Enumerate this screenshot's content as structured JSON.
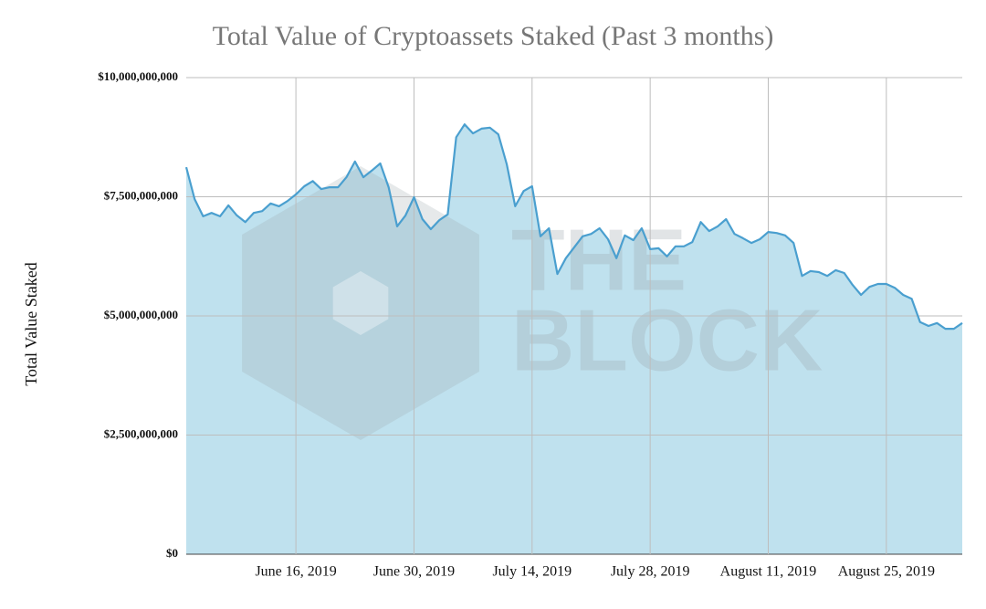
{
  "chart_data": {
    "type": "area",
    "title": "Total Value of Cryptoassets Staked (Past 3 months)",
    "y_label": "Total Value Staked",
    "watermark": [
      "THE",
      "BLOCK"
    ],
    "color": "#4a9fcf",
    "fill": "#bfe1ee",
    "grid": true,
    "x": [
      "2019-06-03",
      "2019-06-04",
      "2019-06-05",
      "2019-06-06",
      "2019-06-07",
      "2019-06-08",
      "2019-06-09",
      "2019-06-10",
      "2019-06-11",
      "2019-06-12",
      "2019-06-13",
      "2019-06-14",
      "2019-06-15",
      "2019-06-16",
      "2019-06-17",
      "2019-06-18",
      "2019-06-19",
      "2019-06-20",
      "2019-06-21",
      "2019-06-22",
      "2019-06-23",
      "2019-06-24",
      "2019-06-25",
      "2019-06-26",
      "2019-06-27",
      "2019-06-28",
      "2019-06-29",
      "2019-06-30",
      "2019-07-01",
      "2019-07-02",
      "2019-07-03",
      "2019-07-04",
      "2019-07-05",
      "2019-07-06",
      "2019-07-07",
      "2019-07-08",
      "2019-07-09",
      "2019-07-10",
      "2019-07-11",
      "2019-07-12",
      "2019-07-13",
      "2019-07-14",
      "2019-07-15",
      "2019-07-16",
      "2019-07-17",
      "2019-07-18",
      "2019-07-19",
      "2019-07-20",
      "2019-07-21",
      "2019-07-22",
      "2019-07-23",
      "2019-07-24",
      "2019-07-25",
      "2019-07-26",
      "2019-07-27",
      "2019-07-28",
      "2019-07-29",
      "2019-07-30",
      "2019-07-31",
      "2019-08-01",
      "2019-08-02",
      "2019-08-03",
      "2019-08-04",
      "2019-08-05",
      "2019-08-06",
      "2019-08-07",
      "2019-08-08",
      "2019-08-09",
      "2019-08-10",
      "2019-08-11",
      "2019-08-12",
      "2019-08-13",
      "2019-08-14",
      "2019-08-15",
      "2019-08-16",
      "2019-08-17",
      "2019-08-18",
      "2019-08-19",
      "2019-08-20",
      "2019-08-21",
      "2019-08-22",
      "2019-08-23",
      "2019-08-24",
      "2019-08-25",
      "2019-08-26",
      "2019-08-27",
      "2019-08-28",
      "2019-08-29",
      "2019-08-30",
      "2019-08-31",
      "2019-09-01",
      "2019-09-02",
      "2019-09-03"
    ],
    "values": [
      8120000000,
      7450000000,
      7090000000,
      7160000000,
      7090000000,
      7320000000,
      7110000000,
      6970000000,
      7160000000,
      7200000000,
      7360000000,
      7300000000,
      7410000000,
      7550000000,
      7720000000,
      7830000000,
      7660000000,
      7700000000,
      7700000000,
      7910000000,
      8240000000,
      7910000000,
      8050000000,
      8200000000,
      7700000000,
      6880000000,
      7110000000,
      7490000000,
      7030000000,
      6820000000,
      7010000000,
      7130000000,
      8750000000,
      9020000000,
      8830000000,
      8930000000,
      8950000000,
      8810000000,
      8180000000,
      7300000000,
      7620000000,
      7720000000,
      6670000000,
      6840000000,
      5880000000,
      6210000000,
      6440000000,
      6670000000,
      6720000000,
      6840000000,
      6610000000,
      6210000000,
      6690000000,
      6590000000,
      6840000000,
      6400000000,
      6420000000,
      6250000000,
      6460000000,
      6460000000,
      6550000000,
      6970000000,
      6780000000,
      6880000000,
      7030000000,
      6720000000,
      6630000000,
      6530000000,
      6610000000,
      6760000000,
      6740000000,
      6690000000,
      6530000000,
      5840000000,
      5940000000,
      5920000000,
      5840000000,
      5960000000,
      5900000000,
      5650000000,
      5440000000,
      5610000000,
      5670000000,
      5670000000,
      5590000000,
      5440000000,
      5360000000,
      4870000000,
      4790000000,
      4850000000,
      4730000000,
      4730000000,
      4850000000
    ],
    "xlim": [
      "2019-06-03",
      "2019-09-03"
    ],
    "xticks": [
      {
        "value": "2019-06-16",
        "label": "June 16, 2019"
      },
      {
        "value": "2019-06-30",
        "label": "June 30, 2019"
      },
      {
        "value": "2019-07-14",
        "label": "July 14, 2019"
      },
      {
        "value": "2019-07-28",
        "label": "July 28, 2019"
      },
      {
        "value": "2019-08-11",
        "label": "August 11, 2019"
      },
      {
        "value": "2019-08-25",
        "label": "August 25, 2019"
      }
    ],
    "ylim": [
      0,
      10000000000
    ],
    "yticks": [
      {
        "value": 0,
        "label": "$0"
      },
      {
        "value": 2500000000,
        "label": "$2,500,000,000"
      },
      {
        "value": 5000000000,
        "label": "$5,000,000,000"
      },
      {
        "value": 7500000000,
        "label": "$7,500,000,000"
      },
      {
        "value": 10000000000,
        "label": "$10,000,000,000"
      }
    ]
  }
}
